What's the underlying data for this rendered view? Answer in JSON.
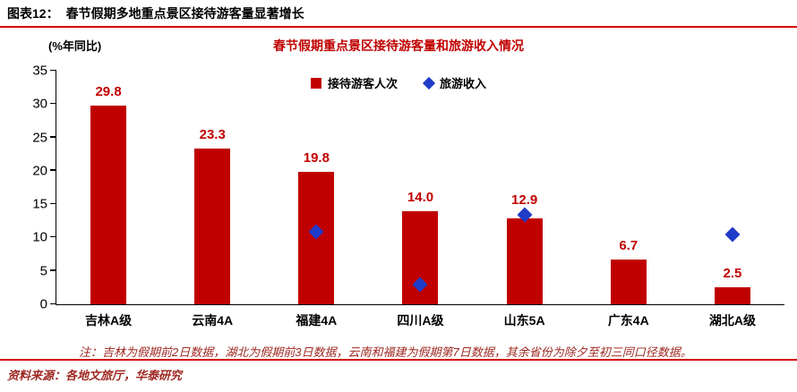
{
  "header": {
    "figure_label": "图表12：",
    "figure_title": "春节假期多地重点景区接待游客量显著增长"
  },
  "chart_data": {
    "type": "bar",
    "title": "春节假期重点景区接待游客量和旅游收入情况",
    "unit_label": "(%年同比)",
    "categories": [
      "吉林A级",
      "云南4A",
      "福建4A",
      "四川A级",
      "山东5A",
      "广东4A",
      "湖北A级"
    ],
    "series": [
      {
        "name": "接待游客人次",
        "type": "bar",
        "color": "#c00000",
        "values": [
          29.8,
          23.3,
          19.8,
          14.0,
          12.9,
          6.7,
          2.5
        ]
      },
      {
        "name": "旅游收入",
        "type": "scatter",
        "marker": "diamond",
        "color": "#1f3bc8",
        "values": [
          null,
          null,
          11.0,
          3.1,
          13.5,
          null,
          10.6
        ]
      }
    ],
    "ylim": [
      0,
      35
    ],
    "yticks": [
      0,
      5,
      10,
      15,
      20,
      25,
      30,
      35
    ],
    "grid": false,
    "legend_position": "top-center"
  },
  "footnote": "注：吉林为假期前2日数据，湖北为假期前3日数据，云南和福建为假期第7日数据，其余省份为除夕至初三同口径数据。",
  "source": "资料来源：各地文旅厅，华泰研究",
  "colors": {
    "bar": "#c00000",
    "diamond": "#1f3bc8",
    "accent_line": "#d40000",
    "value_label": "#c00000",
    "note_text": "#9e2822"
  }
}
